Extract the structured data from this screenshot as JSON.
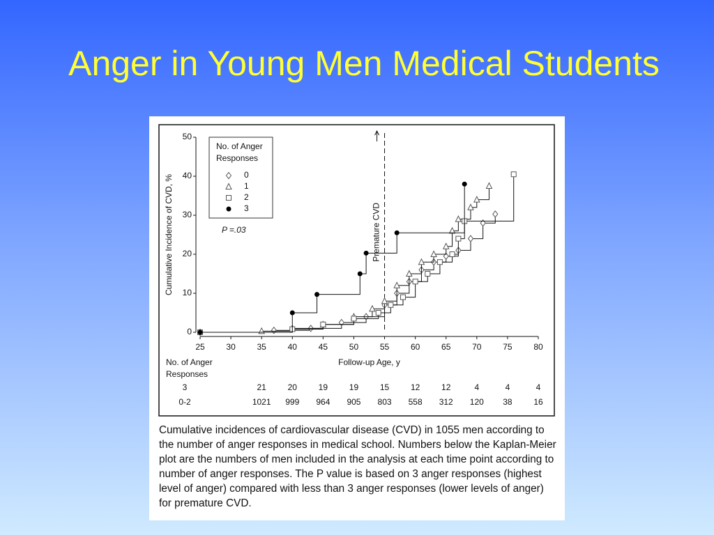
{
  "slide_title": "Anger in Young Men Medical Students",
  "chart_data": {
    "type": "step",
    "x_label": "Follow-up Age, y",
    "y_label": "Cumulative Incidence of CVD, %",
    "xlim": [
      25,
      80
    ],
    "xticks": [
      25,
      30,
      35,
      40,
      45,
      50,
      55,
      60,
      65,
      70,
      75,
      80
    ],
    "ylim": [
      0,
      50
    ],
    "yticks": [
      0,
      10,
      20,
      30,
      40,
      50
    ],
    "legend_title": "No. of Anger Responses",
    "p_value": "P =.03",
    "reference_line": {
      "x": 55,
      "label": "Premature CVD"
    },
    "series": [
      {
        "name": "0",
        "marker": "diamond",
        "color": "#555555",
        "x": [
          25,
          37,
          43,
          48,
          52,
          55,
          57,
          59,
          61,
          63,
          65,
          67,
          69,
          71,
          73
        ],
        "values": [
          0,
          0.5,
          1,
          2.5,
          4,
          7,
          10,
          13,
          16,
          18,
          19.5,
          21,
          24,
          28,
          30.3
        ]
      },
      {
        "name": "1",
        "marker": "triangle",
        "color": "#555555",
        "x": [
          35,
          40,
          45,
          50,
          53,
          55,
          57,
          59,
          61,
          63,
          65,
          66,
          67,
          69,
          70,
          72
        ],
        "values": [
          0.3,
          1,
          2,
          4,
          6,
          8,
          12,
          15,
          18,
          20,
          22,
          26,
          29,
          32,
          34,
          37.5
        ]
      },
      {
        "name": "2",
        "marker": "square",
        "color": "#555555",
        "x": [
          25,
          40,
          45,
          50,
          54,
          56,
          58,
          60,
          62,
          64,
          66,
          67,
          68,
          76
        ],
        "values": [
          0,
          0.8,
          2,
          3.5,
          5,
          7,
          9,
          13,
          15,
          18,
          20,
          24,
          28.5,
          40.5
        ]
      },
      {
        "name": "3",
        "marker": "circle",
        "color": "#000000",
        "x": [
          25,
          40,
          44,
          51,
          52,
          57,
          68
        ],
        "values": [
          0,
          5,
          9.7,
          15,
          20.3,
          25.5,
          38
        ]
      }
    ],
    "risk_table": {
      "title": "No. of Anger Responses",
      "rows": [
        {
          "label": "3",
          "counts": [
            21,
            20,
            19,
            19,
            15,
            12,
            12,
            4,
            4,
            4
          ]
        },
        {
          "label": "0-2",
          "counts": [
            1021,
            999,
            964,
            905,
            803,
            558,
            312,
            120,
            38,
            16
          ]
        }
      ]
    }
  },
  "caption": "Cumulative incidences of cardiovascular disease (CVD) in 1055 men according to the number of anger responses in medical school. Numbers below the Kaplan-Meier plot are the numbers of men included in the analysis at each time point according to number of anger responses. The P value is based on 3 anger responses (highest level of anger) compared with less than 3 anger responses (lower levels of anger) for premature CVD."
}
